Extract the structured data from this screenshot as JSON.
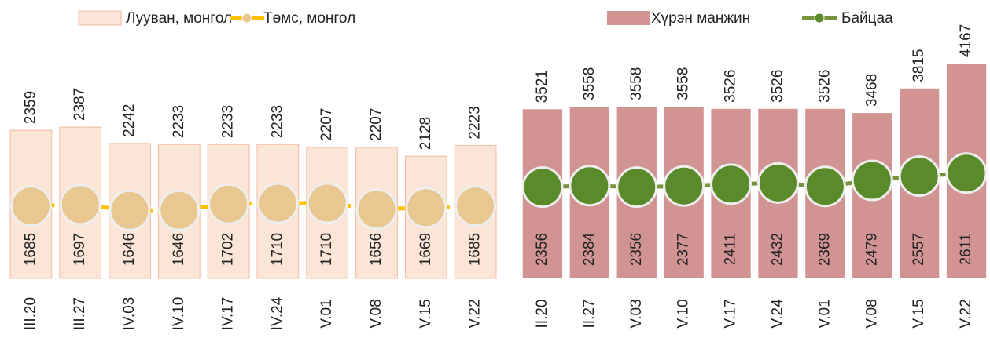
{
  "chart_data": [
    {
      "type": "bar",
      "categories": [
        "III.20",
        "III.27",
        "IV.03",
        "IV.10",
        "IV.17",
        "IV.24",
        "V.01",
        "V.08",
        "V.15",
        "V.22"
      ],
      "series": [
        {
          "name": "Лууван, монгол",
          "type": "bar",
          "color": "#fbe5d6",
          "values": [
            2359,
            2387,
            2242,
            2233,
            2233,
            2233,
            2207,
            2207,
            2128,
            2223
          ]
        },
        {
          "name": "Төмс, монгол",
          "type": "line",
          "color": "#ffc000",
          "values": [
            1685,
            1697,
            1646,
            1646,
            1702,
            1710,
            1710,
            1656,
            1669,
            1685
          ]
        }
      ],
      "ylim": [
        1040,
        3100
      ]
    },
    {
      "type": "bar",
      "categories": [
        "II.20",
        "II.27",
        "V.03",
        "V.10",
        "V.17",
        "V.24",
        "V.01",
        "V.08",
        "V.15",
        "V.22"
      ],
      "series": [
        {
          "name": "Хүрэн манжин",
          "type": "bar",
          "color": "#d29393",
          "values": [
            3521,
            3558,
            3558,
            3558,
            3526,
            3526,
            3526,
            3468,
            3815,
            4167
          ]
        },
        {
          "name": "Байцаа",
          "type": "line",
          "axis": "y2",
          "color": "#77933c",
          "values": [
            2356,
            2384,
            2356,
            2377,
            2411,
            2432,
            2369,
            2479,
            2557,
            2611
          ]
        }
      ],
      "ylim": [
        1130,
        4400
      ],
      "y2lim": [
        700,
        4900
      ]
    }
  ]
}
